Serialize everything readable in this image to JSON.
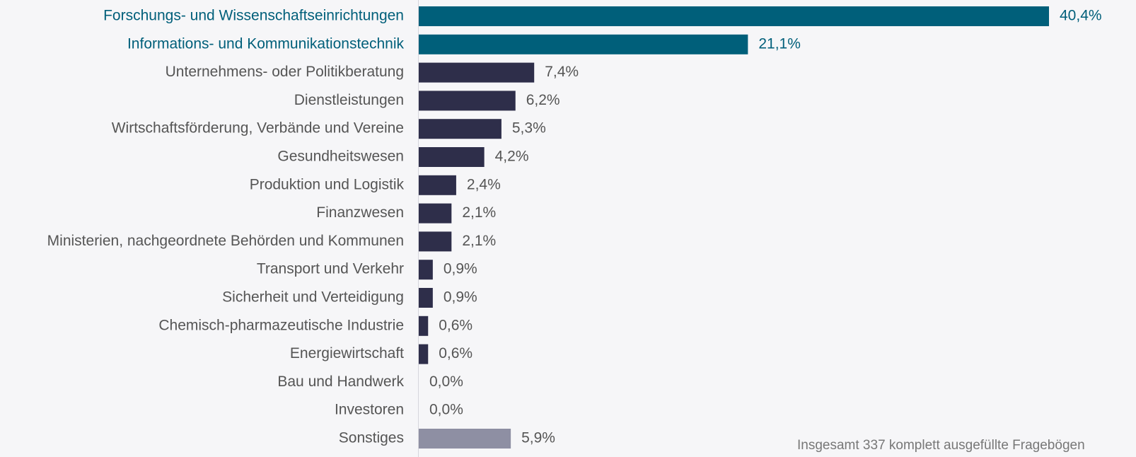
{
  "chart_data": {
    "type": "hbar",
    "categories": [
      "Forschungs- und Wissenschaftseinrichtungen",
      "Informations- und Kommunikationstechnik",
      "Unternehmens- oder Politikberatung",
      "Dienstleistungen",
      "Wirtschaftsförderung, Verbände und Vereine",
      "Gesundheitswesen",
      "Produktion und Logistik",
      "Finanzwesen",
      "Ministerien, nachgeordnete Behörden und Kommunen",
      "Transport und Verkehr",
      "Sicherheit und Verteidigung",
      "Chemisch-pharmazeutische Industrie",
      "Energiewirtschaft",
      "Bau und Handwerk",
      "Investoren",
      "Sonstiges"
    ],
    "values": [
      40.4,
      21.1,
      7.4,
      6.2,
      5.3,
      4.2,
      2.4,
      2.1,
      2.1,
      0.9,
      0.9,
      0.6,
      0.6,
      0.0,
      0.0,
      5.9
    ],
    "value_labels": [
      "40,4%",
      "21,1%",
      "7,4%",
      "6,2%",
      "5,3%",
      "4,2%",
      "2,4%",
      "2,1%",
      "2,1%",
      "0,9%",
      "0,9%",
      "0,6%",
      "0,6%",
      "0,0%",
      "0,0%",
      "5,9%"
    ],
    "colors": [
      "#005f7a",
      "#005f7a",
      "#2e2e4a",
      "#2e2e4a",
      "#2e2e4a",
      "#2e2e4a",
      "#2e2e4a",
      "#2e2e4a",
      "#2e2e4a",
      "#2e2e4a",
      "#2e2e4a",
      "#2e2e4a",
      "#2e2e4a",
      "#2e2e4a",
      "#2e2e4a",
      "#8e8fa3"
    ],
    "label_colors": [
      "#005f7a",
      "#005f7a",
      "#555555",
      "#555555",
      "#555555",
      "#555555",
      "#555555",
      "#555555",
      "#555555",
      "#555555",
      "#555555",
      "#555555",
      "#555555",
      "#555555",
      "#555555",
      "#555555"
    ],
    "note": "Insgesamt 337 komplett ausgefüllte Fragebögen"
  }
}
